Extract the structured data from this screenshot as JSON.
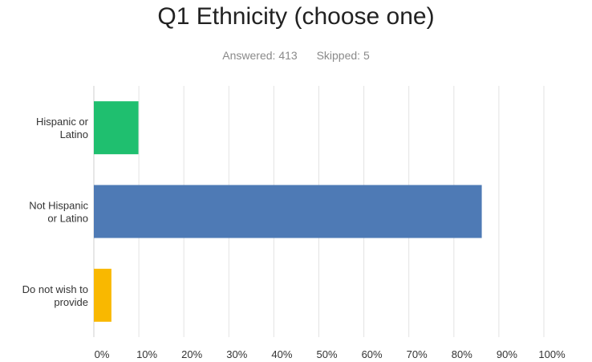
{
  "header": {
    "title": "Q1 Ethnicity (choose one)",
    "answered_label": "Answered:",
    "answered_count": "413",
    "skipped_label": "Skipped:",
    "skipped_count": "5"
  },
  "chart_data": {
    "type": "bar",
    "orientation": "horizontal",
    "title": "Q1 Ethnicity (choose one)",
    "categories": [
      [
        "Hispanic or",
        "Latino"
      ],
      [
        "Not Hispanic",
        "or Latino"
      ],
      [
        "Do not wish to",
        "provide"
      ]
    ],
    "values": [
      9.9,
      86.2,
      3.9
    ],
    "colors": [
      "#1fbf6f",
      "#4e7ab5",
      "#f9b800"
    ],
    "xlim": [
      0,
      100
    ],
    "x_ticks": [
      "0%",
      "10%",
      "20%",
      "30%",
      "40%",
      "50%",
      "60%",
      "70%",
      "80%",
      "90%",
      "100%"
    ],
    "grid": true,
    "xlabel": "",
    "ylabel": ""
  }
}
